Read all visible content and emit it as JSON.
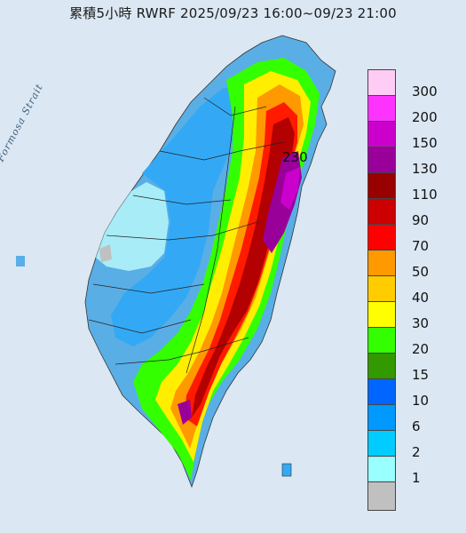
{
  "title": "累積5小時 RWRF 2025/09/23 16:00~09/23 21:00",
  "strait_label": "Formosa Strait",
  "max_value_label": "230",
  "legend": [
    {
      "label": "300",
      "color": "#ffccf5"
    },
    {
      "label": "200",
      "color": "#ff33ff"
    },
    {
      "label": "150",
      "color": "#cc00cc"
    },
    {
      "label": "130",
      "color": "#990099"
    },
    {
      "label": "110",
      "color": "#990000"
    },
    {
      "label": "90",
      "color": "#cc0000"
    },
    {
      "label": "70",
      "color": "#ff0000"
    },
    {
      "label": "50",
      "color": "#ff9900"
    },
    {
      "label": "40",
      "color": "#ffcc00"
    },
    {
      "label": "30",
      "color": "#ffff00"
    },
    {
      "label": "20",
      "color": "#33ff00"
    },
    {
      "label": "15",
      "color": "#339900"
    },
    {
      "label": "10",
      "color": "#0066ff"
    },
    {
      "label": "6",
      "color": "#0099ff"
    },
    {
      "label": "2",
      "color": "#00ccff"
    },
    {
      "label": "1",
      "color": "#99ffff"
    },
    {
      "label": "",
      "color": "#c0c0c0"
    }
  ]
}
